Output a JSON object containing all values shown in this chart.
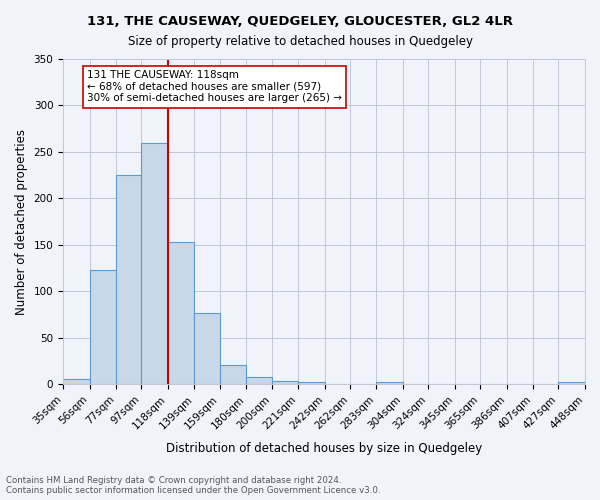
{
  "title1": "131, THE CAUSEWAY, QUEDGELEY, GLOUCESTER, GL2 4LR",
  "title2": "Size of property relative to detached houses in Quedgeley",
  "xlabel": "Distribution of detached houses by size in Quedgeley",
  "ylabel": "Number of detached properties",
  "bin_labels": [
    "35sqm",
    "56sqm",
    "77sqm",
    "97sqm",
    "118sqm",
    "139sqm",
    "159sqm",
    "180sqm",
    "200sqm",
    "221sqm",
    "242sqm",
    "262sqm",
    "283sqm",
    "304sqm",
    "324sqm",
    "345sqm",
    "365sqm",
    "386sqm",
    "407sqm",
    "427sqm",
    "448sqm"
  ],
  "bin_edges": [
    35,
    56,
    77,
    97,
    118,
    139,
    159,
    180,
    200,
    221,
    242,
    262,
    283,
    304,
    324,
    345,
    365,
    386,
    407,
    427,
    448
  ],
  "bar_heights": [
    6,
    123,
    225,
    260,
    153,
    77,
    21,
    8,
    4,
    3,
    0,
    0,
    3,
    0,
    0,
    0,
    0,
    0,
    0,
    3
  ],
  "bar_color": "#c8d8e8",
  "bar_edge_color": "#5b9bd5",
  "vline_x": 118,
  "vline_color": "#cc0000",
  "annotation_text": "131 THE CAUSEWAY: 118sqm\n← 68% of detached houses are smaller (597)\n30% of semi-detached houses are larger (265) →",
  "annotation_box_color": "#ffffff",
  "annotation_box_edge": "#cc0000",
  "ylim": [
    0,
    350
  ],
  "yticks": [
    0,
    50,
    100,
    150,
    200,
    250,
    300,
    350
  ],
  "footer1": "Contains HM Land Registry data © Crown copyright and database right 2024.",
  "footer2": "Contains public sector information licensed under the Open Government Licence v3.0.",
  "bg_color": "#f0f4fa"
}
